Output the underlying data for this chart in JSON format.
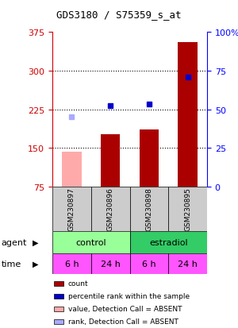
{
  "title": "GDS3180 / S75359_s_at",
  "samples": [
    "GSM230897",
    "GSM230896",
    "GSM230898",
    "GSM230895"
  ],
  "bar_values": [
    143,
    176,
    186,
    355
  ],
  "bar_colors": [
    "#ffaaaa",
    "#aa0000",
    "#aa0000",
    "#aa0000"
  ],
  "rank_values": [
    210,
    232,
    235,
    287
  ],
  "rank_colors": [
    "#aaaaff",
    "#0000cc",
    "#0000cc",
    "#0000cc"
  ],
  "ylim_left": [
    75,
    375
  ],
  "yticks_left": [
    75,
    150,
    225,
    300,
    375
  ],
  "ylim_right": [
    0,
    100
  ],
  "yticks_right": [
    0,
    25,
    50,
    75,
    100
  ],
  "agent_colors": [
    "#99ff99",
    "#33cc66"
  ],
  "agent_labels": [
    "control",
    "estradiol"
  ],
  "time_labels": [
    "6 h",
    "24 h",
    "6 h",
    "24 h"
  ],
  "time_color": "#ff55ff",
  "gsm_bg_color": "#cccccc",
  "legend_items": [
    {
      "label": "count",
      "color": "#aa0000"
    },
    {
      "label": "percentile rank within the sample",
      "color": "#0000cc"
    },
    {
      "label": "value, Detection Call = ABSENT",
      "color": "#ffaaaa"
    },
    {
      "label": "rank, Detection Call = ABSENT",
      "color": "#aaaaff"
    }
  ]
}
